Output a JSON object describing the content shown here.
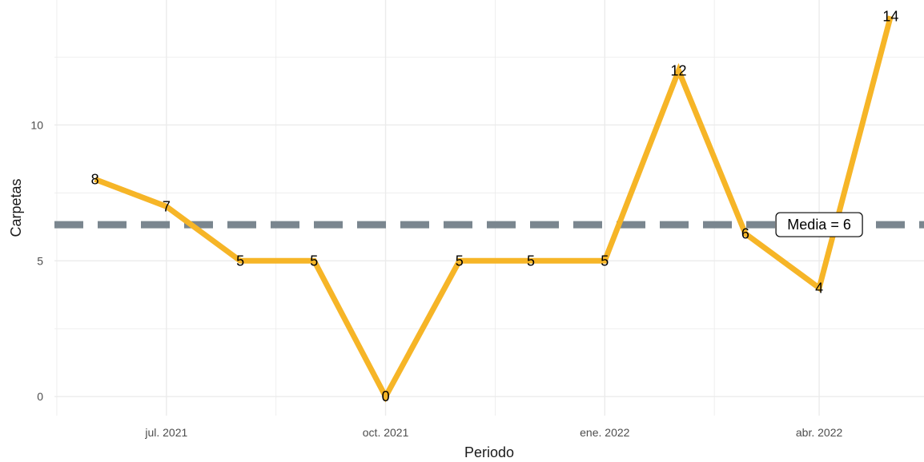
{
  "chart_data": {
    "type": "line",
    "title": "",
    "xlabel": "Periodo",
    "ylabel": "Carpetas",
    "x": [
      "2021-06",
      "2021-07",
      "2021-08",
      "2021-09",
      "2021-10",
      "2021-11",
      "2021-12",
      "2022-01",
      "2022-02",
      "2022-03",
      "2022-04",
      "2022-05"
    ],
    "values": [
      8,
      7,
      5,
      5,
      0,
      5,
      5,
      5,
      12,
      6,
      4,
      14
    ],
    "data_labels": [
      "8",
      "7",
      "5",
      "5",
      "0",
      "5",
      "5",
      "5",
      "12",
      "6",
      "4",
      "14"
    ],
    "x_ticks": [
      {
        "label": "jul. 2021",
        "x": "2021-07"
      },
      {
        "label": "oct. 2021",
        "x": "2021-10"
      },
      {
        "label": "ene. 2022",
        "x": "2022-01"
      },
      {
        "label": "abr. 2022",
        "x": "2022-04"
      }
    ],
    "y_ticks": [
      0,
      5,
      10
    ],
    "y_tick_labels": [
      "0",
      "5",
      "10"
    ],
    "ylim": [
      -0.7,
      14.6
    ],
    "xlim": [
      "2021-05-15",
      "2022-05-15"
    ],
    "grid": true,
    "reference_line": {
      "value": 6.33,
      "label": "Media = 6",
      "label_x": "2022-04"
    },
    "colors": {
      "line": "#F6B527",
      "reference": "#7A868F",
      "grid": "#EBEBEB"
    }
  }
}
